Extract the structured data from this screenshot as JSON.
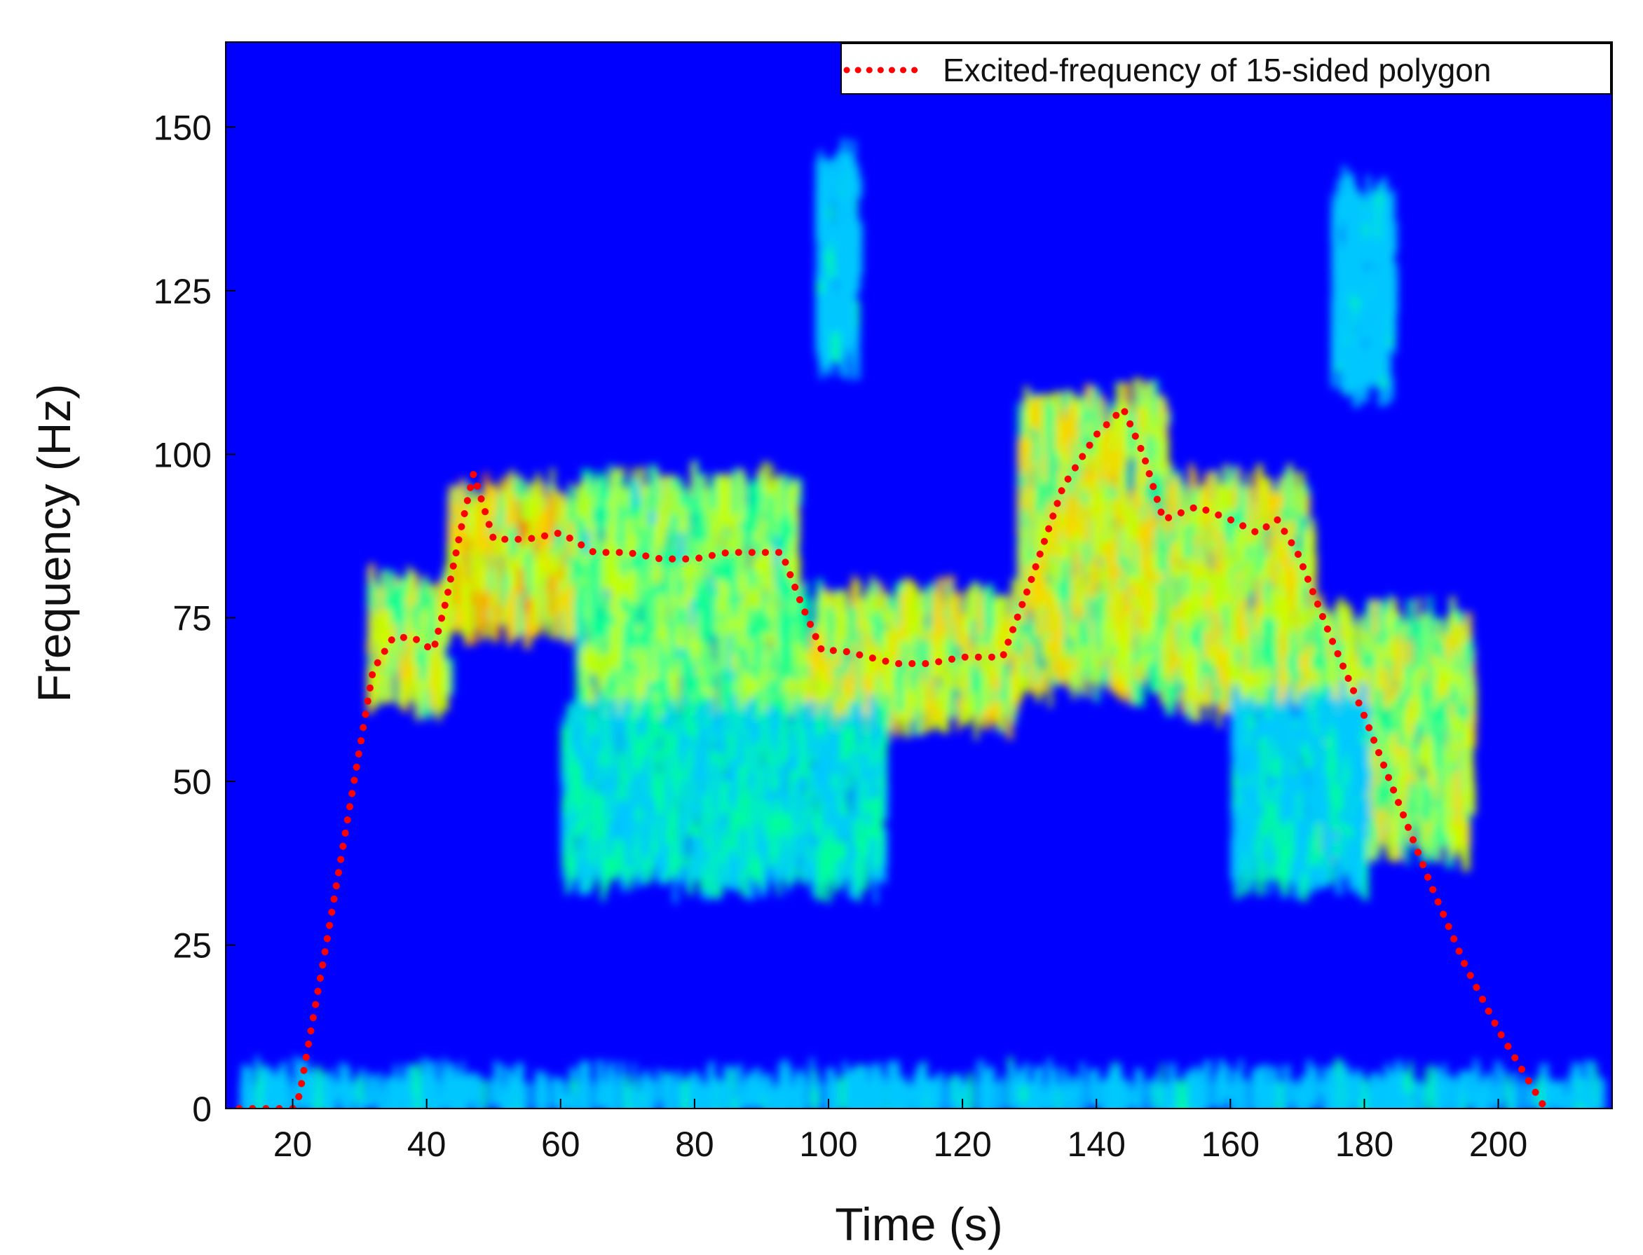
{
  "chart_data": {
    "type": "heatmap",
    "xlabel": "Time (s)",
    "ylabel": "Frequency (Hz)",
    "xlim": [
      10,
      217
    ],
    "ylim": [
      0,
      163
    ],
    "xticks": [
      20,
      40,
      60,
      80,
      100,
      120,
      140,
      160,
      180,
      200
    ],
    "yticks": [
      0,
      25,
      50,
      75,
      100,
      125,
      150
    ],
    "colormap": [
      "#0000ff",
      "#00c8ff",
      "#00ff9a",
      "#c8ff00",
      "#ffd200",
      "#ff6a00"
    ],
    "background_color": "#0000ff",
    "legend": {
      "placement": "top-right",
      "entries": [
        {
          "label": "Excited-frequency of 15-sided polygon",
          "color": "#ff0000",
          "style": "dotted"
        }
      ]
    },
    "series": [
      {
        "name": "Excited-frequency of 15-sided polygon",
        "color": "#ff0000",
        "x": [
          12,
          20,
          21,
          25,
          30,
          32,
          35,
          38,
          41,
          43,
          45,
          47,
          50,
          55,
          60,
          65,
          70,
          75,
          80,
          85,
          90,
          93,
          96,
          99,
          102,
          106,
          110,
          115,
          120,
          126,
          130,
          135,
          140,
          144,
          147,
          150,
          155,
          160,
          164,
          167,
          170,
          175,
          180,
          185,
          190,
          195,
          200,
          207
        ],
        "y": [
          0,
          0,
          2,
          25,
          55,
          67,
          72,
          72,
          70,
          78,
          88,
          97,
          87,
          87,
          88,
          85,
          85,
          84,
          84,
          85,
          85,
          85,
          77,
          70,
          70,
          69,
          68,
          68,
          69,
          69,
          80,
          95,
          103,
          107,
          100,
          90,
          92,
          90,
          88,
          90,
          85,
          72,
          60,
          47,
          34,
          22,
          12,
          0
        ]
      }
    ],
    "energy_bands": [
      {
        "t": [
          31,
          43
        ],
        "f": [
          62,
          80
        ],
        "level": 0.8
      },
      {
        "t": [
          43,
          62
        ],
        "f": [
          74,
          94
        ],
        "level": 0.9
      },
      {
        "t": [
          62,
          95
        ],
        "f": [
          60,
          95
        ],
        "level": 0.65
      },
      {
        "t": [
          95,
          128
        ],
        "f": [
          60,
          78
        ],
        "level": 0.8
      },
      {
        "t": [
          128,
          150
        ],
        "f": [
          65,
          108
        ],
        "level": 0.85
      },
      {
        "t": [
          150,
          172
        ],
        "f": [
          62,
          95
        ],
        "level": 0.8
      },
      {
        "t": [
          172,
          196
        ],
        "f": [
          40,
          75
        ],
        "level": 0.75
      },
      {
        "t": [
          60,
          108
        ],
        "f": [
          35,
          60
        ],
        "level": 0.4
      },
      {
        "t": [
          160,
          180
        ],
        "f": [
          35,
          62
        ],
        "level": 0.35
      },
      {
        "t": [
          98,
          104
        ],
        "f": [
          115,
          145
        ],
        "level": 0.3
      },
      {
        "t": [
          175,
          184
        ],
        "f": [
          110,
          140
        ],
        "level": 0.3
      },
      {
        "t": [
          12,
          215
        ],
        "f": [
          0,
          4
        ],
        "level": 0.3
      }
    ]
  }
}
